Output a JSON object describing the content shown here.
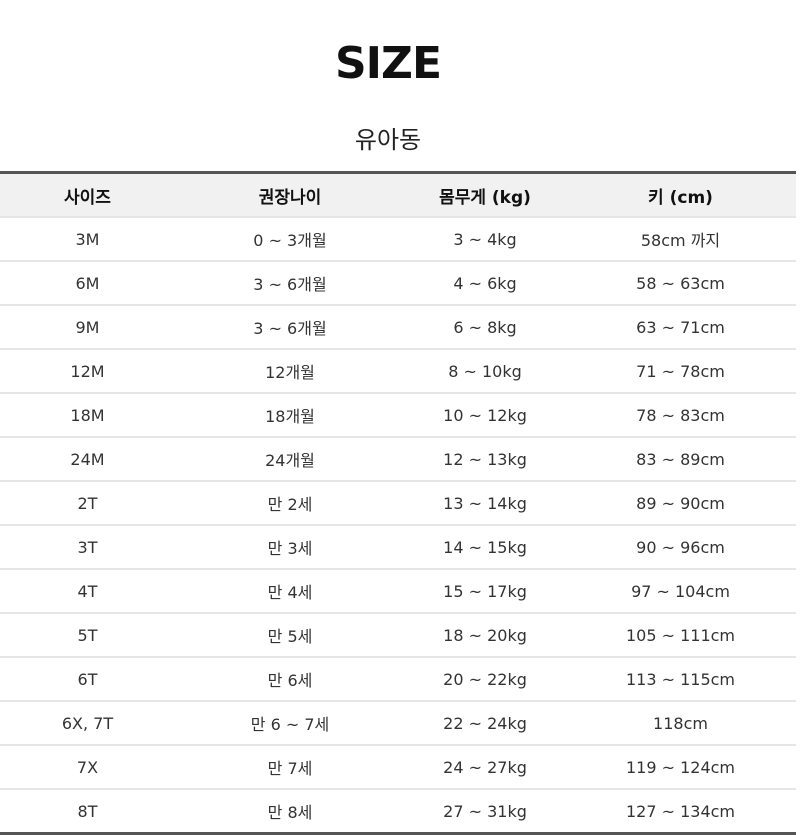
{
  "title": "SIZE",
  "subtitle": "유아동",
  "table": {
    "headers": [
      "사이즈",
      "권장나이",
      "몸무게 (kg)",
      "키 (cm)"
    ],
    "rows": [
      [
        "3M",
        "0 ~ 3개월",
        "3 ~ 4kg",
        "58cm 까지"
      ],
      [
        "6M",
        "3 ~ 6개월",
        "4 ~ 6kg",
        "58 ~ 63cm"
      ],
      [
        "9M",
        "3 ~ 6개월",
        "6 ~ 8kg",
        "63 ~ 71cm"
      ],
      [
        "12M",
        "12개월",
        "8 ~ 10kg",
        "71 ~ 78cm"
      ],
      [
        "18M",
        "18개월",
        "10 ~ 12kg",
        "78 ~ 83cm"
      ],
      [
        "24M",
        "24개월",
        "12 ~ 13kg",
        "83 ~ 89cm"
      ],
      [
        "2T",
        "만 2세",
        "13 ~ 14kg",
        "89 ~ 90cm"
      ],
      [
        "3T",
        "만 3세",
        "14 ~ 15kg",
        "90 ~ 96cm"
      ],
      [
        "4T",
        "만 4세",
        "15 ~ 17kg",
        "97 ~ 104cm"
      ],
      [
        "5T",
        "만 5세",
        "18 ~ 20kg",
        "105 ~ 111cm"
      ],
      [
        "6T",
        "만 6세",
        "20 ~ 22kg",
        "113 ~ 115cm"
      ],
      [
        "6X, 7T",
        "만 6 ~ 7세",
        "22 ~ 24kg",
        "118cm"
      ],
      [
        "7X",
        "만 7세",
        "24 ~ 27kg",
        "119 ~ 124cm"
      ],
      [
        "8T",
        "만 8세",
        "27 ~ 31kg",
        "127 ~ 134cm"
      ]
    ]
  }
}
